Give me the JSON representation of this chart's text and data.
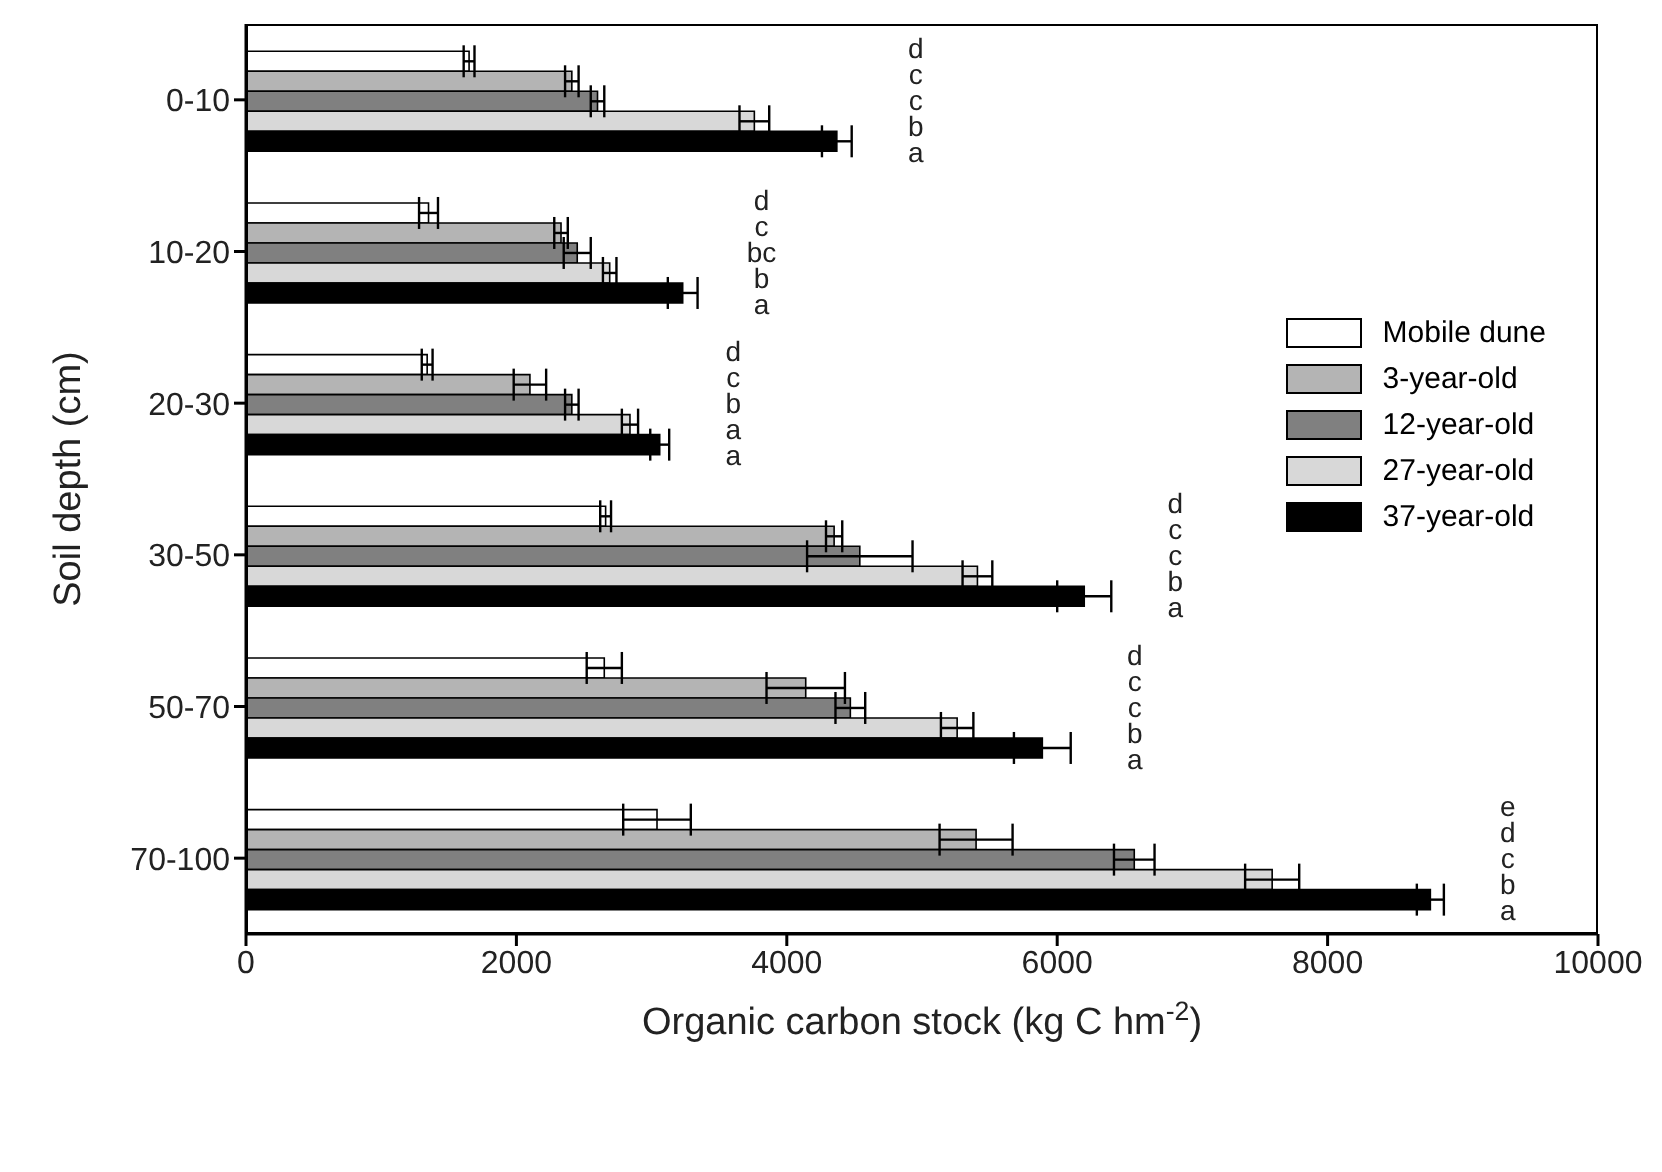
{
  "chart_data": {
    "type": "bar",
    "orientation": "horizontal",
    "xlabel": "Organic carbon stock (kg C hm$^{-2}$)",
    "ylabel": "Soil depth (cm)",
    "categories": [
      "0-10",
      "10-20",
      "20-30",
      "30-50",
      "50-70",
      "70-100"
    ],
    "series": [
      {
        "name": "Mobile dune",
        "color": "#ffffff",
        "values": [
          1650,
          1350,
          1340,
          2660,
          2650,
          3040
        ],
        "errors": [
          40,
          70,
          40,
          40,
          130,
          250
        ]
      },
      {
        "name": "3-year-old",
        "color": "#b4b4b4",
        "values": [
          2410,
          2330,
          2100,
          4350,
          4140,
          5400
        ],
        "errors": [
          50,
          50,
          120,
          60,
          290,
          270
        ]
      },
      {
        "name": "12-year-old",
        "color": "#808080",
        "values": [
          2600,
          2450,
          2410,
          4540,
          4470,
          6570
        ],
        "errors": [
          50,
          100,
          50,
          390,
          110,
          150
        ]
      },
      {
        "name": "27-year-old",
        "color": "#d8d8d8",
        "values": [
          3760,
          2690,
          2840,
          5410,
          5260,
          7590
        ],
        "errors": [
          110,
          50,
          60,
          110,
          120,
          200
        ]
      },
      {
        "name": "37-year-old",
        "color": "#000000",
        "values": [
          4370,
          3230,
          3060,
          6200,
          5890,
          8760
        ],
        "errors": [
          110,
          110,
          70,
          200,
          210,
          100
        ]
      }
    ],
    "xlim": [
      0,
      10000
    ],
    "xticks": [
      0,
      2000,
      4000,
      6000,
      8000,
      10000
    ],
    "grid": false,
    "legend": "top right",
    "annotations": [
      "d\nc\nc\nb\na",
      "d\nc\nbc\nb\na",
      "d\nc\nb\na\na",
      "d\nc\nc\nb\na",
      "d\nc\nc\nb\na",
      "e\nd\nc\nb\na"
    ]
  }
}
